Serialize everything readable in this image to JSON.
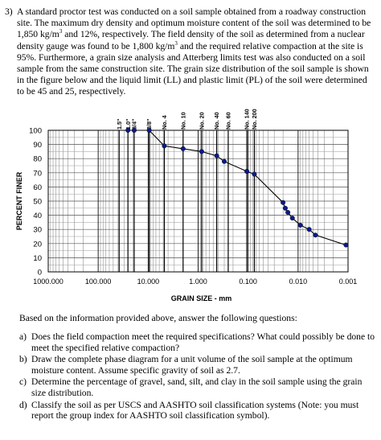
{
  "problem": {
    "number": "3)",
    "text_html": "A standard proctor test was conducted on a soil sample obtained from a roadway construction site. The maximum dry density and optimum moisture content of the soil was determined to be 1,850 kg/m<sup>3</sup> and 12%, respectively. The field density of the soil as determined from a nuclear density gauge was found to be 1,800 kg/m<sup>3</sup> and the required relative compaction at the site is 95%. Furthermore, a grain size analysis and Atterberg limits test was also conducted on a soil sample from the same construction site. The grain size distribution of the soil sample is shown in the figure below and the liquid limit (LL) and plastic limit (PL) of the soil were determined to be 45 and 25, respectively."
  },
  "chart_data": {
    "type": "line",
    "xlabel": "GRAIN SIZE - mm",
    "ylabel": "PERCENT FINER",
    "x_scale": "log",
    "x_reversed": true,
    "xlim": [
      1000,
      0.001
    ],
    "ylim": [
      0,
      100
    ],
    "x_tick_labels": [
      "1000.000",
      "100.000",
      "10.000",
      "1.000",
      "0.100",
      "0.010",
      "0.001"
    ],
    "y_tick_labels": [
      "0",
      "10",
      "20",
      "30",
      "40",
      "50",
      "60",
      "70",
      "80",
      "90",
      "100"
    ],
    "sieve_labels": [
      {
        "label": "1.5\"",
        "size": 38.1
      },
      {
        "label": "1.0\"",
        "size": 25.4
      },
      {
        "label": "3/4\"",
        "size": 19.05
      },
      {
        "label": "3/8\"",
        "size": 9.525
      },
      {
        "label": "No. 4",
        "size": 4.75
      },
      {
        "label": "No. 10",
        "size": 2.0
      },
      {
        "label": "No. 20",
        "size": 0.85
      },
      {
        "label": "No. 40",
        "size": 0.425
      },
      {
        "label": "No. 60",
        "size": 0.25
      },
      {
        "label": "No. 140",
        "size": 0.106
      },
      {
        "label": "No. 200",
        "size": 0.075
      }
    ],
    "series": [
      {
        "color": "#0a1a8c",
        "points": [
          {
            "x": 25.4,
            "y": 100
          },
          {
            "x": 19.05,
            "y": 100
          },
          {
            "x": 9.525,
            "y": 100
          },
          {
            "x": 4.75,
            "y": 89
          },
          {
            "x": 2.0,
            "y": 87
          },
          {
            "x": 0.85,
            "y": 85
          },
          {
            "x": 0.425,
            "y": 82
          },
          {
            "x": 0.3,
            "y": 78
          },
          {
            "x": 0.106,
            "y": 71
          },
          {
            "x": 0.075,
            "y": 69
          },
          {
            "x": 0.02,
            "y": 49
          },
          {
            "x": 0.018,
            "y": 45
          },
          {
            "x": 0.016,
            "y": 42
          },
          {
            "x": 0.013,
            "y": 38
          },
          {
            "x": 0.009,
            "y": 33
          },
          {
            "x": 0.006,
            "y": 30
          },
          {
            "x": 0.0045,
            "y": 26
          },
          {
            "x": 0.0011,
            "y": 19
          }
        ]
      }
    ]
  },
  "intro": "Based on the information provided above, answer the following questions:",
  "questions": [
    {
      "label": "a)",
      "text": "Does the field compaction meet the required specifications? What could possibly be done to meet the specified relative compaction?"
    },
    {
      "label": "b)",
      "text": "Draw the complete phase diagram for a unit volume of the soil sample at the optimum moisture content. Assume specific gravity of soil as 2.7."
    },
    {
      "label": "c)",
      "text": "Determine the percentage of gravel, sand, silt, and clay in the soil sample using the grain size distribution."
    },
    {
      "label": "d)",
      "text": "Classify the soil as per USCS and AASHTO soil classification systems (Note: you must report the group index for AASHTO soil classification symbol)."
    }
  ]
}
